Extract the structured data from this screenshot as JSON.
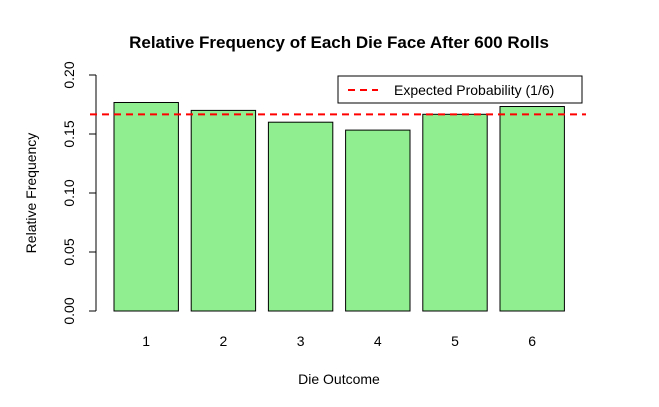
{
  "chart_data": {
    "type": "bar",
    "title": "Relative Frequency of Each Die Face After 600 Rolls",
    "xlabel": "Die Outcome",
    "ylabel": "Relative Frequency",
    "categories": [
      "1",
      "2",
      "3",
      "4",
      "5",
      "6"
    ],
    "values": [
      0.1767,
      0.17,
      0.16,
      0.1533,
      0.1667,
      0.1733
    ],
    "ylim": [
      0,
      0.2
    ],
    "yticks": [
      0.0,
      0.05,
      0.1,
      0.15,
      0.2
    ],
    "ytick_labels": [
      "0.00",
      "0.05",
      "0.10",
      "0.15",
      "0.20"
    ],
    "bar_color": "#90EE90",
    "reference_line": {
      "value": 0.16667,
      "label": "Expected Probability (1/6)",
      "color": "#FF0000",
      "style": "dashed"
    },
    "legend": {
      "position": "top-right",
      "entries": [
        "Expected Probability (1/6)"
      ]
    },
    "grid": false
  }
}
